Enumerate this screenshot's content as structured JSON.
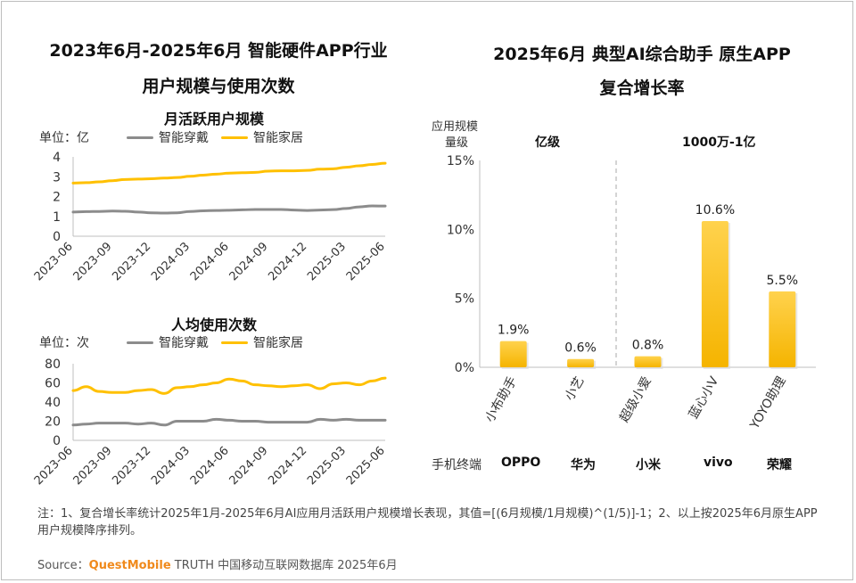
{
  "left": {
    "title_line1": "2023年6月-2025年6月 智能硬件APP行业",
    "title_line2": "用户规模与使用次数",
    "legend_wearable": "智能穿戴",
    "legend_home": "智能家居"
  },
  "right": {
    "title_line1": "2025年6月 典型AI综合助手 原生APP",
    "title_line2": "复合增长率",
    "scale_label_line1": "应用规模",
    "scale_label_line2": "量级",
    "group1_label": "亿级",
    "group2_label": "1000万-1亿",
    "terminal_label": "手机终端",
    "terminals": [
      "OPPO",
      "华为",
      "小米",
      "vivo",
      "荣耀"
    ]
  },
  "chart_data": [
    {
      "type": "line",
      "title": "月活跃用户规模",
      "unit_label": "单位：亿",
      "categories": [
        "2023-06",
        "2023-07",
        "2023-08",
        "2023-09",
        "2023-10",
        "2023-11",
        "2023-12",
        "2024-01",
        "2024-02",
        "2024-03",
        "2024-04",
        "2024-05",
        "2024-06",
        "2024-07",
        "2024-08",
        "2024-09",
        "2024-10",
        "2024-11",
        "2024-12",
        "2025-01",
        "2025-02",
        "2025-03",
        "2025-04",
        "2025-05",
        "2025-06"
      ],
      "tick_labels": [
        "2023-06",
        "2023-09",
        "2023-12",
        "2024-03",
        "2024-06",
        "2024-09",
        "2024-12",
        "2025-03",
        "2025-06"
      ],
      "ylim": [
        0,
        4
      ],
      "yticks": [
        0,
        1,
        2,
        3,
        4
      ],
      "series": [
        {
          "name": "智能穿戴",
          "color": "#8c8c8c",
          "values": [
            1.22,
            1.24,
            1.25,
            1.27,
            1.26,
            1.22,
            1.18,
            1.17,
            1.18,
            1.25,
            1.28,
            1.3,
            1.31,
            1.33,
            1.35,
            1.35,
            1.35,
            1.32,
            1.3,
            1.32,
            1.34,
            1.4,
            1.48,
            1.53,
            1.52
          ]
        },
        {
          "name": "智能家居",
          "color": "#ffc000",
          "values": [
            2.68,
            2.7,
            2.74,
            2.8,
            2.86,
            2.88,
            2.9,
            2.93,
            2.96,
            3.02,
            3.08,
            3.13,
            3.18,
            3.2,
            3.22,
            3.28,
            3.3,
            3.3,
            3.32,
            3.38,
            3.4,
            3.48,
            3.55,
            3.62,
            3.68
          ]
        }
      ]
    },
    {
      "type": "line",
      "title": "人均使用次数",
      "unit_label": "单位：次",
      "categories": [
        "2023-06",
        "2023-07",
        "2023-08",
        "2023-09",
        "2023-10",
        "2023-11",
        "2023-12",
        "2024-01",
        "2024-02",
        "2024-03",
        "2024-04",
        "2024-05",
        "2024-06",
        "2024-07",
        "2024-08",
        "2024-09",
        "2024-10",
        "2024-11",
        "2024-12",
        "2025-01",
        "2025-02",
        "2025-03",
        "2025-04",
        "2025-05",
        "2025-06"
      ],
      "tick_labels": [
        "2023-06",
        "2023-09",
        "2023-12",
        "2024-03",
        "2024-06",
        "2024-09",
        "2024-12",
        "2025-03",
        "2025-06"
      ],
      "ylim": [
        0,
        80
      ],
      "yticks": [
        0,
        20,
        40,
        60,
        80
      ],
      "series": [
        {
          "name": "智能穿戴",
          "color": "#8c8c8c",
          "values": [
            16,
            17,
            18,
            18,
            18,
            17,
            18,
            16,
            20,
            20,
            20,
            22,
            21,
            20,
            20,
            19,
            19,
            19,
            19,
            22,
            21,
            22,
            21,
            21,
            21
          ]
        },
        {
          "name": "智能家居",
          "color": "#ffc000",
          "values": [
            52,
            56,
            51,
            50,
            50,
            52,
            53,
            49,
            55,
            56,
            58,
            60,
            64,
            62,
            58,
            57,
            56,
            57,
            58,
            54,
            59,
            60,
            58,
            62,
            65
          ]
        }
      ]
    },
    {
      "type": "bar",
      "title": "2025年6月 典型AI综合助手 原生APP 复合增长率",
      "categories": [
        "小布助手",
        "小艺",
        "超级小爱",
        "蓝心小V",
        "YOYO助理"
      ],
      "values": [
        1.9,
        0.6,
        0.8,
        10.6,
        5.5
      ],
      "value_labels": [
        "1.9%",
        "0.6%",
        "0.8%",
        "10.6%",
        "5.5%"
      ],
      "ylim": [
        0,
        15
      ],
      "yticks": [
        "0%",
        "5%",
        "10%",
        "15%"
      ],
      "color": "#ffc000"
    }
  ],
  "footer": {
    "note": "注：1、复合增长率统计2025年1月-2025年6月AI应用月活跃用户规模增长表现，其值=[(6月规模/1月规模)^(1/5)]-1；2、以上按2025年6月原生APP用户规模降序排列。",
    "source_prefix": "Source：",
    "source_brand": "QuestMobile",
    "source_rest": " TRUTH 中国移动互联网数据库 2025年6月"
  }
}
